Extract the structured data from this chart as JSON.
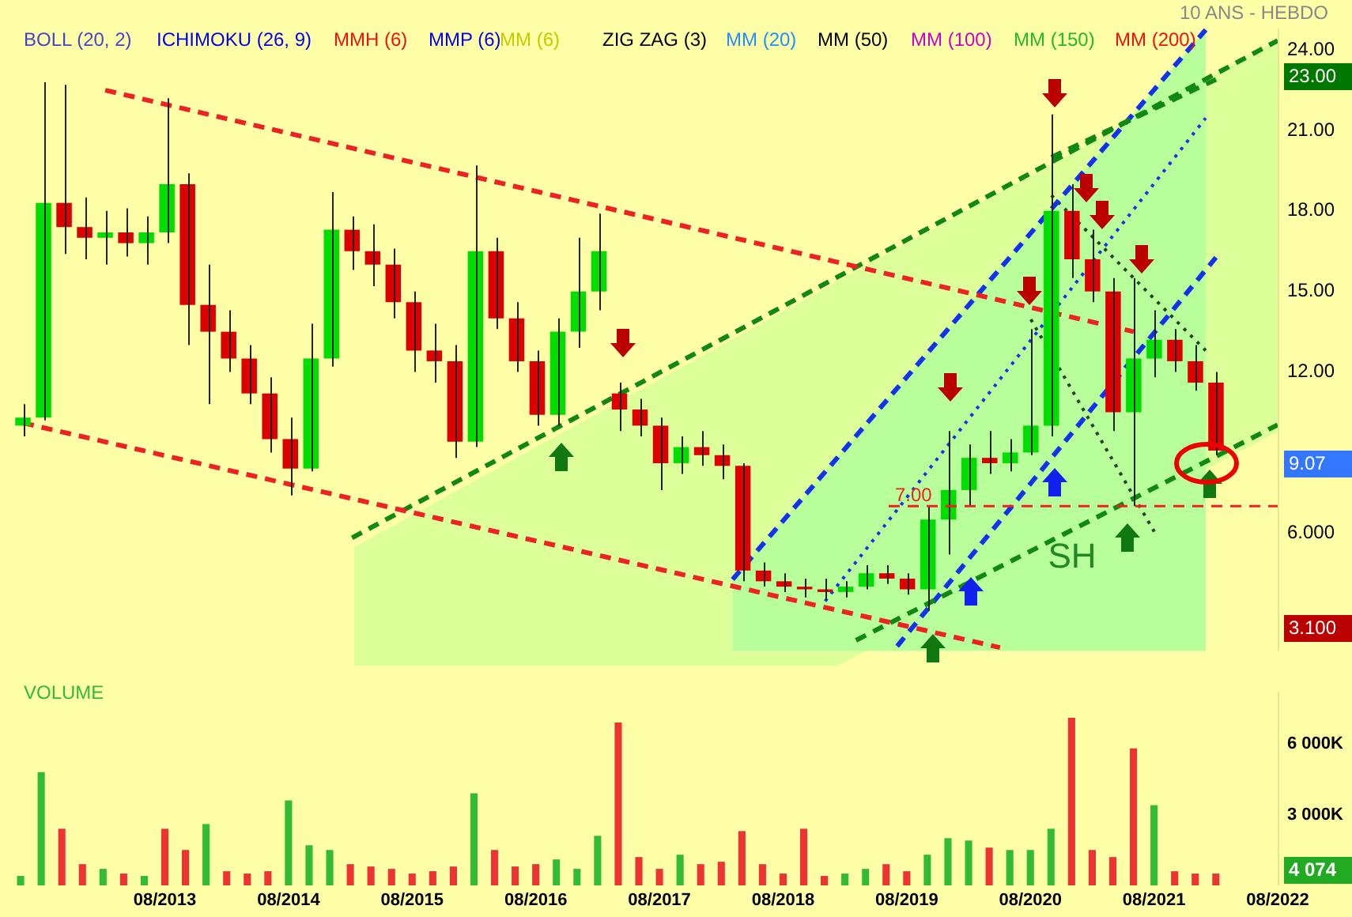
{
  "chart_data": [
    {
      "type": "candlestick",
      "subtitle": "10 ANS - HEBDO",
      "annotations": [
        "BOLL (20, 2)",
        "ICHIMOKU (26, 9)",
        "MMH (6)",
        "MMP (6)",
        "MM (6)",
        "ZIG ZAG (3)",
        "MM (20)",
        "MM (50)",
        "MM (100)",
        "MM (150)",
        "MM (200)",
        "23.00",
        "9.07",
        "3.100",
        "SH"
      ],
      "x": [
        "2012-06",
        "2012-08",
        "2012-10",
        "2012-12",
        "2013-02",
        "2013-04",
        "2013-06",
        "2013-08",
        "2013-10",
        "2013-12",
        "2014-02",
        "2014-04",
        "2014-06",
        "2014-08",
        "2014-10",
        "2014-12",
        "2015-02",
        "2015-04",
        "2015-06",
        "2015-08",
        "2015-10",
        "2015-12",
        "2016-02",
        "2016-04",
        "2016-06",
        "2016-08",
        "2016-10",
        "2016-12",
        "2017-02",
        "2017-04",
        "2017-06",
        "2017-08",
        "2017-10",
        "2017-12",
        "2018-02",
        "2018-04",
        "2018-06",
        "2018-08",
        "2018-10",
        "2018-12",
        "2019-02",
        "2019-04",
        "2019-06",
        "2019-08",
        "2019-10",
        "2019-12",
        "2020-02",
        "2020-04",
        "2020-06",
        "2020-08",
        "2020-10",
        "2020-12",
        "2021-02",
        "2021-04",
        "2021-06",
        "2021-08",
        "2021-10",
        "2021-12",
        "2022-02"
      ],
      "ohlc": [
        [
          10.0,
          10.8,
          9.6,
          10.3
        ],
        [
          10.3,
          22.8,
          10.2,
          18.3
        ],
        [
          18.3,
          22.7,
          16.4,
          17.4
        ],
        [
          17.4,
          18.5,
          16.2,
          17.0
        ],
        [
          17.0,
          18.0,
          16.0,
          17.2
        ],
        [
          17.2,
          18.1,
          16.3,
          16.8
        ],
        [
          16.8,
          17.8,
          16.0,
          17.2
        ],
        [
          17.2,
          22.2,
          16.8,
          19.0
        ],
        [
          19.0,
          19.4,
          13.0,
          14.5
        ],
        [
          14.5,
          16.0,
          10.8,
          13.5
        ],
        [
          13.5,
          14.3,
          12.0,
          12.5
        ],
        [
          12.5,
          13.0,
          10.8,
          11.2
        ],
        [
          11.2,
          11.8,
          9.0,
          9.5
        ],
        [
          9.5,
          10.3,
          7.4,
          8.4
        ],
        [
          8.4,
          13.8,
          8.3,
          12.5
        ],
        [
          12.5,
          18.7,
          12.2,
          17.3
        ],
        [
          17.3,
          17.8,
          15.8,
          16.5
        ],
        [
          16.5,
          17.5,
          15.2,
          16.0
        ],
        [
          16.0,
          16.6,
          14.0,
          14.6
        ],
        [
          14.6,
          15.0,
          12.0,
          12.8
        ],
        [
          12.8,
          13.8,
          11.6,
          12.4
        ],
        [
          12.4,
          13.0,
          8.8,
          9.4
        ],
        [
          9.4,
          19.7,
          9.2,
          16.5
        ],
        [
          16.5,
          17.0,
          13.6,
          14.0
        ],
        [
          14.0,
          14.6,
          12.0,
          12.4
        ],
        [
          12.4,
          12.8,
          10.0,
          10.4
        ],
        [
          10.4,
          14.0,
          10.0,
          13.5
        ],
        [
          13.5,
          17.0,
          12.9,
          15.0
        ],
        [
          15.0,
          17.9,
          14.3,
          16.5
        ],
        [
          11.2,
          11.6,
          9.8,
          10.6
        ],
        [
          10.6,
          11.0,
          9.6,
          10.0
        ],
        [
          10.0,
          10.3,
          7.6,
          8.6
        ],
        [
          8.6,
          9.6,
          8.2,
          9.2
        ],
        [
          9.2,
          9.8,
          8.5,
          8.9
        ],
        [
          8.9,
          9.3,
          8.0,
          8.5
        ],
        [
          8.5,
          8.6,
          4.2,
          4.6
        ],
        [
          4.6,
          4.9,
          4.0,
          4.2
        ],
        [
          4.2,
          4.5,
          3.8,
          4.0
        ],
        [
          4.0,
          4.3,
          3.6,
          3.9
        ],
        [
          3.9,
          4.3,
          3.5,
          3.8
        ],
        [
          3.8,
          4.2,
          3.6,
          4.0
        ],
        [
          4.0,
          4.8,
          3.9,
          4.5
        ],
        [
          4.5,
          4.8,
          4.1,
          4.3
        ],
        [
          4.3,
          4.5,
          3.7,
          3.9
        ],
        [
          3.9,
          7.0,
          3.1,
          6.5
        ],
        [
          6.5,
          9.8,
          5.2,
          7.6
        ],
        [
          7.6,
          9.3,
          7.0,
          8.8
        ],
        [
          8.8,
          9.8,
          8.2,
          8.6
        ],
        [
          8.6,
          9.5,
          8.3,
          9.0
        ],
        [
          9.0,
          13.6,
          8.9,
          10.0
        ],
        [
          10.0,
          21.6,
          9.6,
          18.0
        ],
        [
          18.0,
          19.0,
          15.5,
          16.2
        ],
        [
          16.2,
          17.3,
          14.6,
          15.0
        ],
        [
          15.0,
          15.5,
          9.8,
          10.5
        ],
        [
          10.5,
          15.5,
          7.0,
          12.5
        ],
        [
          12.5,
          14.3,
          11.8,
          13.2
        ],
        [
          13.2,
          13.6,
          12.0,
          12.4
        ],
        [
          12.4,
          13.0,
          11.3,
          11.6
        ],
        [
          11.6,
          12.0,
          8.9,
          9.07
        ]
      ],
      "series": [
        {
          "type": "line",
          "x": [
            "2013-02",
            "2021-06"
          ],
          "values": [
            22.5,
            13.5
          ],
          "color": "#ee2222",
          "line_style": "dashed"
        },
        {
          "type": "line",
          "x": [
            "2012-06",
            "2020-05"
          ],
          "values": [
            10.1,
            1.73
          ],
          "color": "#ee2222",
          "line_style": "dashed"
        },
        {
          "type": "line",
          "x": [
            "2015-02",
            "2022-08"
          ],
          "values": [
            5.82,
            24.35
          ],
          "color": "#118811",
          "line_style": "dashed"
        },
        {
          "type": "line",
          "x": [
            "2019-03",
            "2022-08"
          ],
          "values": [
            2.0,
            10.03
          ],
          "color": "#118811",
          "line_style": "dashed"
        },
        {
          "type": "line",
          "x": [
            "2020-10",
            "2022-02"
          ],
          "values": [
            20.0,
            22.9
          ],
          "color": "#118811",
          "line_style": "dashed"
        },
        {
          "type": "line",
          "x": [
            "2018-03",
            "2022-01"
          ],
          "values": [
            4.27,
            24.75
          ],
          "color": "#1133ee",
          "line_style": "dashed"
        },
        {
          "type": "line",
          "x": [
            "2019-07",
            "2022-02"
          ],
          "values": [
            1.78,
            16.27
          ],
          "color": "#1133ee",
          "line_style": "dashed"
        },
        {
          "type": "line",
          "x": [
            "2018-12",
            "2022-01"
          ],
          "values": [
            3.46,
            21.46
          ],
          "color": "#1133ee",
          "line_style": "dotted"
        },
        {
          "type": "area",
          "x": [
            "2018-03",
            "2022-01"
          ],
          "values": [
            4.27,
            24.75
          ],
          "color": "#b8ff9c"
        },
        {
          "type": "line",
          "x": [
            "2020-08",
            "2021-08"
          ],
          "values": [
            13.96,
            6.05
          ],
          "color": "#224422",
          "line_style": "dotted"
        },
        {
          "type": "line",
          "x": [
            "2020-10",
            "2022-01"
          ],
          "values": [
            18.58,
            12.8
          ],
          "color": "#224422",
          "line_style": "dotted"
        }
      ],
      "ref_lines": [
        {
          "axis": "y",
          "value": 7,
          "label": "7.00",
          "color": "#ee2222",
          "line_style": "dashed"
        }
      ],
      "xlim": [
        "2012-04",
        "2022-08"
      ],
      "ylim": [
        1.6,
        24.8
      ],
      "yticks": [
        {
          "value": 6,
          "label": "6.000"
        },
        {
          "value": 12,
          "label": "12.00"
        },
        {
          "value": 15,
          "label": "15.00"
        },
        {
          "value": 18,
          "label": "18.00"
        },
        {
          "value": 21,
          "label": "21.00"
        },
        {
          "value": 24,
          "label": "24.00"
        }
      ],
      "tick_labels": "y"
    },
    {
      "type": "bar",
      "annotations": [
        "VOLUME",
        "4 074"
      ],
      "x": [
        "2012-06",
        "2012-08",
        "2012-10",
        "2012-12",
        "2013-02",
        "2013-04",
        "2013-06",
        "2013-08",
        "2013-10",
        "2013-12",
        "2014-02",
        "2014-04",
        "2014-06",
        "2014-08",
        "2014-10",
        "2014-12",
        "2015-02",
        "2015-04",
        "2015-06",
        "2015-08",
        "2015-10",
        "2015-12",
        "2016-02",
        "2016-04",
        "2016-06",
        "2016-08",
        "2016-10",
        "2016-12",
        "2017-02",
        "2017-04",
        "2017-06",
        "2017-08",
        "2017-10",
        "2017-12",
        "2018-02",
        "2018-04",
        "2018-06",
        "2018-08",
        "2018-10",
        "2018-12",
        "2019-02",
        "2019-04",
        "2019-06",
        "2019-08",
        "2019-10",
        "2019-12",
        "2020-02",
        "2020-04",
        "2020-06",
        "2020-08",
        "2020-10",
        "2020-12",
        "2021-02",
        "2021-04",
        "2021-06",
        "2021-08",
        "2021-10",
        "2021-12",
        "2022-02"
      ],
      "values": [
        400,
        4800,
        2400,
        900,
        700,
        500,
        400,
        2400,
        1500,
        2600,
        600,
        500,
        600,
        3600,
        1700,
        1500,
        900,
        800,
        700,
        500,
        600,
        800,
        3900,
        1500,
        800,
        900,
        1100,
        700,
        2100,
        6900,
        1200,
        700,
        1300,
        900,
        1000,
        2300,
        900,
        500,
        2400,
        400,
        500,
        700,
        900,
        600,
        1300,
        2000,
        1900,
        1600,
        1500,
        1500,
        2400,
        7100,
        1500,
        1200,
        5800,
        3400,
        600,
        500,
        500
      ],
      "colors": [
        "#33bb33",
        "#33bb33",
        "#ee3333",
        "#ee3333",
        "#33bb33",
        "#ee3333",
        "#33bb33",
        "#ee3333",
        "#ee3333",
        "#33bb33",
        "#ee3333",
        "#ee3333",
        "#ee3333",
        "#33bb33",
        "#33bb33",
        "#33bb33",
        "#ee3333",
        "#ee3333",
        "#ee3333",
        "#ee3333",
        "#ee3333",
        "#ee3333",
        "#33bb33",
        "#ee3333",
        "#ee3333",
        "#ee3333",
        "#33bb33",
        "#33bb33",
        "#33bb33",
        "#ee3333",
        "#ee3333",
        "#ee3333",
        "#33bb33",
        "#ee3333",
        "#ee3333",
        "#ee3333",
        "#ee3333",
        "#ee3333",
        "#ee3333",
        "#ee3333",
        "#33bb33",
        "#33bb33",
        "#ee3333",
        "#ee3333",
        "#33bb33",
        "#33bb33",
        "#33bb33",
        "#ee3333",
        "#33bb33",
        "#33bb33",
        "#33bb33",
        "#ee3333",
        "#ee3333",
        "#ee3333",
        "#ee3333",
        "#33bb33",
        "#ee3333",
        "#ee3333",
        "#ee3333"
      ],
      "xlim": [
        "2012-04",
        "2022-08"
      ],
      "ylim": [
        0,
        8200
      ],
      "xticks": [
        {
          "value": "2013-08",
          "label": "08/2013"
        },
        {
          "value": "2014-08",
          "label": "08/2014"
        },
        {
          "value": "2015-08",
          "label": "08/2015"
        },
        {
          "value": "2016-08",
          "label": "08/2016"
        },
        {
          "value": "2017-08",
          "label": "08/2017"
        },
        {
          "value": "2018-08",
          "label": "08/2018"
        },
        {
          "value": "2019-08",
          "label": "08/2019"
        },
        {
          "value": "2020-08",
          "label": "08/2020"
        },
        {
          "value": "2021-08",
          "label": "08/2021"
        },
        {
          "value": "2022-08",
          "label": "08/2022"
        }
      ],
      "yticks": [
        {
          "value": 3000,
          "label": "3 000K"
        },
        {
          "value": 6000,
          "label": "6 000K"
        }
      ]
    }
  ]
}
